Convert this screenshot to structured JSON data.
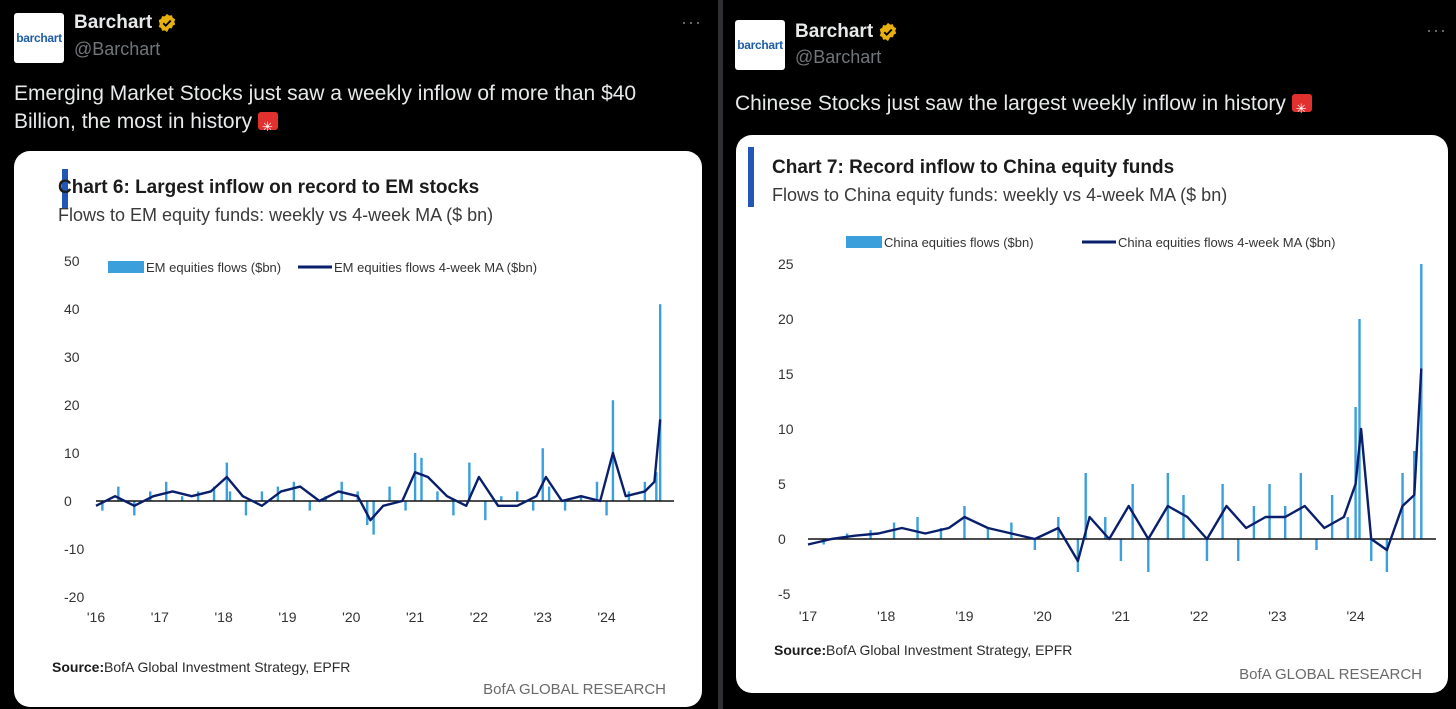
{
  "tweets": [
    {
      "avatar_text": "barchart",
      "name": "Barchart",
      "handle": "@Barchart",
      "more": "···",
      "text": "Emerging Market Stocks just saw a weekly inflow of more than $40 Billion, the most in history",
      "chart_title": "Chart 6: Largest inflow on record to EM stocks",
      "chart_subtitle": "Flows to EM equity funds: weekly vs 4-week MA ($ bn)",
      "source_label": "Source:",
      "source_text": "BofA Global Investment Strategy, EPFR",
      "brand": "BofA GLOBAL RESEARCH"
    },
    {
      "avatar_text": "barchart",
      "name": "Barchart",
      "handle": "@Barchart",
      "more": "···",
      "text": "Chinese Stocks just saw the largest weekly inflow in history",
      "chart_title": "Chart 7: Record inflow to China equity funds",
      "chart_subtitle": "Flows to China equity funds: weekly vs 4-week MA ($ bn)",
      "source_label": "Source:",
      "source_text": "BofA Global Investment Strategy, EPFR",
      "brand": "BofA GLOBAL RESEARCH"
    }
  ],
  "colors": {
    "bar": "#3b9fdc",
    "line": "#0a1f6b",
    "accent": "#2456b8",
    "verified": "#e8b00f"
  },
  "chart_data": [
    {
      "type": "bar",
      "title": "Chart 6: Largest inflow on record to EM stocks",
      "subtitle": "Flows to EM equity funds: weekly vs 4-week MA ($ bn)",
      "xlabel": "",
      "ylabel": "",
      "x_ticks": [
        "'16",
        "'17",
        "'18",
        "'19",
        "'20",
        "'21",
        "'22",
        "'23",
        "'24"
      ],
      "y_ticks": [
        "50",
        "40",
        "30",
        "20",
        "10",
        "0",
        "-10",
        "-20"
      ],
      "ylim": [
        -20,
        50
      ],
      "xlim": [
        2016.0,
        2024.9
      ],
      "grid": false,
      "legend_position": "top",
      "series": [
        {
          "name": "EM equities flows ($bn)",
          "kind": "bar",
          "x": [
            2016.1,
            2016.35,
            2016.6,
            2016.85,
            2017.1,
            2017.35,
            2017.6,
            2017.85,
            2018.05,
            2018.1,
            2018.35,
            2018.6,
            2018.85,
            2019.1,
            2019.35,
            2019.6,
            2019.85,
            2020.1,
            2020.25,
            2020.35,
            2020.6,
            2020.85,
            2021.0,
            2021.1,
            2021.35,
            2021.6,
            2021.85,
            2022.1,
            2022.35,
            2022.6,
            2022.85,
            2023.0,
            2023.1,
            2023.35,
            2023.6,
            2023.85,
            2024.0,
            2024.1,
            2024.35,
            2024.6,
            2024.78,
            2024.84
          ],
          "values": [
            -2,
            3,
            -3,
            2,
            4,
            1,
            2,
            3,
            8,
            2,
            -3,
            2,
            3,
            4,
            -2,
            1,
            4,
            2,
            -5,
            -7,
            3,
            -2,
            10,
            9,
            2,
            -3,
            8,
            -4,
            1,
            2,
            -2,
            11,
            3,
            -2,
            1,
            4,
            -3,
            21,
            2,
            4,
            6,
            41
          ]
        },
        {
          "name": "EM equities flows 4-week MA ($bn)",
          "kind": "line",
          "x": [
            2016.0,
            2016.3,
            2016.6,
            2016.9,
            2017.2,
            2017.5,
            2017.8,
            2018.05,
            2018.3,
            2018.6,
            2018.9,
            2019.2,
            2019.5,
            2019.8,
            2020.1,
            2020.3,
            2020.5,
            2020.8,
            2021.0,
            2021.2,
            2021.5,
            2021.8,
            2022.0,
            2022.3,
            2022.6,
            2022.9,
            2023.05,
            2023.3,
            2023.6,
            2023.9,
            2024.1,
            2024.3,
            2024.6,
            2024.75,
            2024.84
          ],
          "values": [
            -1,
            1,
            -1,
            1,
            2,
            1,
            2,
            5,
            1,
            -1,
            2,
            3,
            0,
            2,
            1,
            -4,
            -1,
            0,
            6,
            5,
            1,
            -1,
            5,
            -1,
            -1,
            1,
            5,
            0,
            1,
            0,
            10,
            1,
            2,
            4,
            17
          ]
        }
      ]
    },
    {
      "type": "bar",
      "title": "Chart 7: Record inflow to China equity funds",
      "subtitle": "Flows to China equity funds: weekly vs 4-week MA ($ bn)",
      "xlabel": "",
      "ylabel": "",
      "x_ticks": [
        "'17",
        "'18",
        "'19",
        "'20",
        "'21",
        "'22",
        "'23",
        "'24"
      ],
      "y_ticks": [
        "25",
        "20",
        "15",
        "10",
        "5",
        "0",
        "-5"
      ],
      "ylim": [
        -5,
        25
      ],
      "xlim": [
        2017.0,
        2024.9
      ],
      "grid": false,
      "legend_position": "top",
      "series": [
        {
          "name": "China equities flows ($bn)",
          "kind": "bar",
          "x": [
            2017.2,
            2017.5,
            2017.8,
            2018.1,
            2018.4,
            2018.7,
            2019.0,
            2019.3,
            2019.6,
            2019.9,
            2020.2,
            2020.45,
            2020.55,
            2020.8,
            2021.0,
            2021.15,
            2021.35,
            2021.6,
            2021.8,
            2022.1,
            2022.3,
            2022.5,
            2022.7,
            2022.9,
            2023.1,
            2023.3,
            2023.5,
            2023.7,
            2023.9,
            2024.0,
            2024.05,
            2024.2,
            2024.4,
            2024.6,
            2024.75,
            2024.84
          ],
          "values": [
            -0.5,
            0.5,
            0.8,
            1.5,
            2,
            1,
            3,
            1,
            1.5,
            -1,
            2,
            -3,
            6,
            2,
            -2,
            5,
            -3,
            6,
            4,
            -2,
            5,
            -2,
            3,
            5,
            3,
            6,
            -1,
            4,
            2,
            12,
            20,
            -2,
            -3,
            6,
            8,
            25
          ]
        },
        {
          "name": "China equities flows 4-week MA ($bn)",
          "kind": "line",
          "x": [
            2017.0,
            2017.3,
            2017.6,
            2017.9,
            2018.2,
            2018.5,
            2018.8,
            2019.0,
            2019.3,
            2019.6,
            2019.9,
            2020.2,
            2020.45,
            2020.6,
            2020.85,
            2021.1,
            2021.35,
            2021.6,
            2021.85,
            2022.1,
            2022.35,
            2022.6,
            2022.85,
            2023.1,
            2023.35,
            2023.6,
            2023.85,
            2024.0,
            2024.07,
            2024.2,
            2024.4,
            2024.6,
            2024.75,
            2024.84
          ],
          "values": [
            -0.5,
            0,
            0.3,
            0.5,
            1,
            0.5,
            1,
            2,
            1,
            0.5,
            0,
            1,
            -2,
            2,
            0,
            3,
            0,
            3,
            2,
            0,
            3,
            1,
            2,
            2,
            3,
            1,
            2,
            5,
            10,
            0,
            -1,
            3,
            4,
            15.5
          ]
        }
      ]
    }
  ]
}
